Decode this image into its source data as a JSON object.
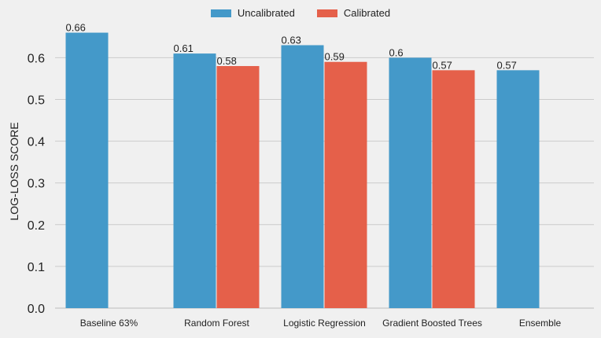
{
  "chart_data": {
    "type": "bar",
    "title": "",
    "xlabel": "",
    "ylabel": "LOG-LOSS SCORE",
    "ylim": [
      0,
      0.6667
    ],
    "yticks": [
      "0.0",
      "0.1",
      "0.2",
      "0.3",
      "0.4",
      "0.5",
      "0.6"
    ],
    "grid": true,
    "legend_position": "top-center",
    "categories": [
      "Baseline 63%",
      "Random Forest",
      "Logistic Regression",
      "Gradient Boosted Trees",
      "Ensemble"
    ],
    "series": [
      {
        "name": "Uncalibrated",
        "color": "#4499c9",
        "values": [
          0.66,
          0.61,
          0.63,
          0.6,
          0.57
        ],
        "labels": [
          "0.66",
          "0.61",
          "0.63",
          "0.6",
          "0.57"
        ]
      },
      {
        "name": "Calibrated",
        "color": "#e5604a",
        "values": [
          null,
          0.58,
          0.59,
          0.57,
          null
        ],
        "labels": [
          "",
          "0.58",
          "0.59",
          "0.57",
          ""
        ]
      }
    ]
  }
}
